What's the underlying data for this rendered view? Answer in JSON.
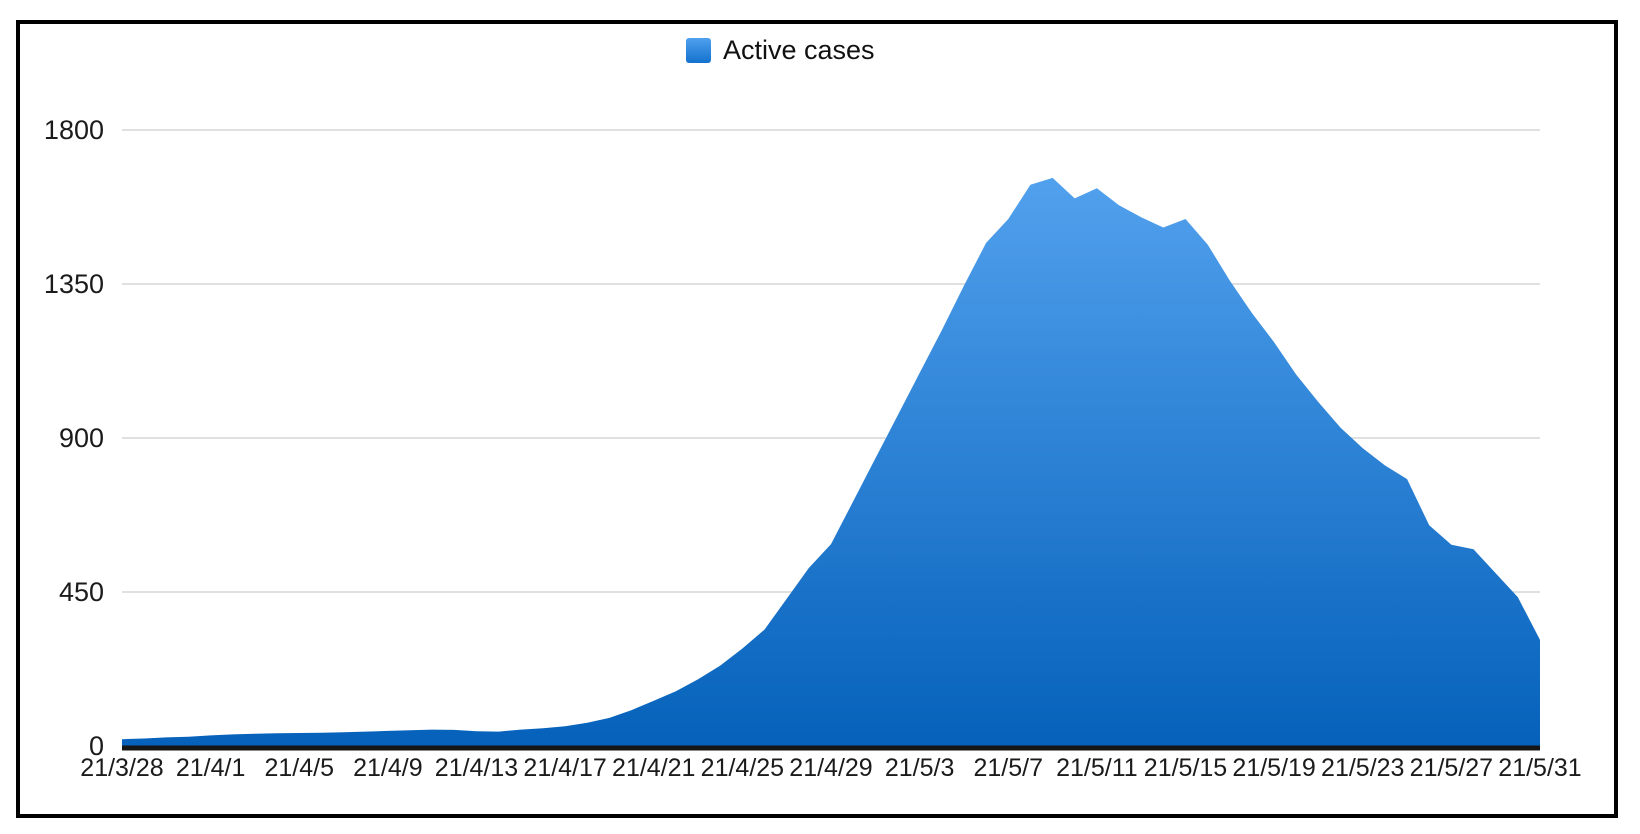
{
  "legend": {
    "label": "Active cases"
  },
  "colors": {
    "area_top": "#58a6f2",
    "area_bottom": "#0561ba",
    "baseline": "#161616",
    "gridline": "#d6d6d6",
    "frame_border": "#000000",
    "tick_text": "#1b1b1b"
  },
  "chart_data": {
    "type": "area",
    "title": "",
    "legend_position": "top-center",
    "grid": true,
    "xlabel": "",
    "ylabel": "",
    "ylim": [
      0,
      1800
    ],
    "y_ticks": [
      0,
      450,
      900,
      1350,
      1800
    ],
    "x_tick_labels": [
      "21/3/28",
      "21/4/1",
      "21/4/5",
      "21/4/9",
      "21/4/13",
      "21/4/17",
      "21/4/21",
      "21/4/25",
      "21/4/29",
      "21/5/3",
      "21/5/7",
      "21/5/11",
      "21/5/15",
      "21/5/19",
      "21/5/23",
      "21/5/27",
      "21/5/31"
    ],
    "x": [
      "21/3/28",
      "21/3/29",
      "21/3/30",
      "21/3/31",
      "21/4/1",
      "21/4/2",
      "21/4/3",
      "21/4/4",
      "21/4/5",
      "21/4/6",
      "21/4/7",
      "21/4/8",
      "21/4/9",
      "21/4/10",
      "21/4/11",
      "21/4/12",
      "21/4/13",
      "21/4/14",
      "21/4/15",
      "21/4/16",
      "21/4/17",
      "21/4/18",
      "21/4/19",
      "21/4/20",
      "21/4/21",
      "21/4/22",
      "21/4/23",
      "21/4/24",
      "21/4/25",
      "21/4/26",
      "21/4/27",
      "21/4/28",
      "21/4/29",
      "21/4/30",
      "21/5/1",
      "21/5/2",
      "21/5/3",
      "21/5/4",
      "21/5/5",
      "21/5/6",
      "21/5/7",
      "21/5/8",
      "21/5/9",
      "21/5/10",
      "21/5/11",
      "21/5/12",
      "21/5/13",
      "21/5/14",
      "21/5/15",
      "21/5/16",
      "21/5/17",
      "21/5/18",
      "21/5/19",
      "21/5/20",
      "21/5/21",
      "21/5/22",
      "21/5/23",
      "21/5/24",
      "21/5/25",
      "21/5/26",
      "21/5/27",
      "21/5/28",
      "21/5/29",
      "21/5/30",
      "21/5/31"
    ],
    "series": [
      {
        "name": "Active cases",
        "values": [
          20,
          22,
          25,
          27,
          31,
          34,
          36,
          37,
          38,
          39,
          40,
          42,
          44,
          46,
          48,
          47,
          43,
          42,
          48,
          52,
          58,
          68,
          82,
          105,
          132,
          160,
          195,
          235,
          285,
          340,
          430,
          520,
          590,
          715,
          840,
          965,
          1090,
          1215,
          1345,
          1470,
          1540,
          1640,
          1660,
          1600,
          1630,
          1580,
          1545,
          1515,
          1540,
          1465,
          1360,
          1265,
          1180,
          1085,
          1005,
          930,
          870,
          820,
          780,
          645,
          588,
          575,
          505,
          435,
          310
        ]
      }
    ]
  }
}
